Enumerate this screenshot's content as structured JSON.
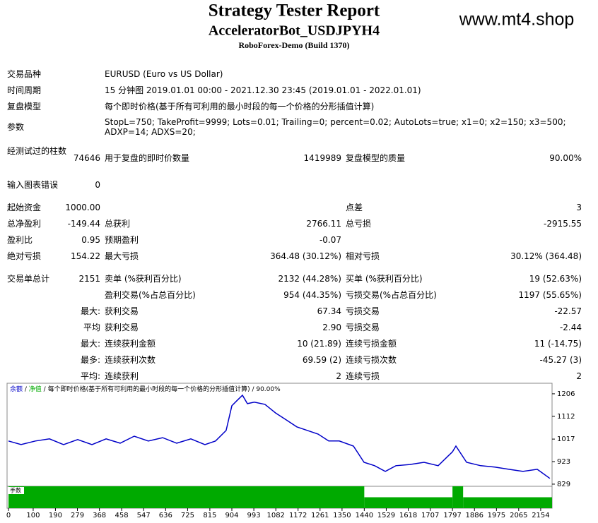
{
  "header": {
    "title": "Strategy Tester Report",
    "subtitle": "AcceleratorBot_USDJPYH4",
    "build": "RoboForex-Demo (Build 1370)",
    "watermark": "www.mt4.shop"
  },
  "info": [
    [
      "交易品种",
      "EURUSD (Euro vs US Dollar)"
    ],
    [
      "时间周期",
      "15 分钟图 2019.01.01 00:00 - 2021.12.30 23:45 (2019.01.01 - 2022.01.01)"
    ],
    [
      "复盘模型",
      "每个即时价格(基于所有可利用的最小时段的每一个价格的分形插值计算)"
    ],
    [
      "参数",
      "StopL=750; TakeProfit=9999; Lots=0.01; Trailing=0; percent=0.02; AutoLots=true; x1=0; x2=150; x3=500; ADXP=14; ADXS=20;"
    ]
  ],
  "stats": [
    [
      "经测试过的柱数",
      "74646",
      "用于复盘的即时价数量",
      "1419989",
      "复盘模型的质量",
      "90.00%"
    ],
    [
      "输入图表错误",
      "0",
      null,
      null,
      null,
      null
    ],
    [
      "起始资金",
      "1000.00",
      null,
      null,
      "点差",
      "3"
    ],
    [
      "总净盈利",
      "-149.44",
      "总获利",
      "2766.11",
      "总亏损",
      "-2915.55"
    ],
    [
      "盈利比",
      "0.95",
      "预期盈利",
      "-0.07",
      null,
      null
    ],
    [
      "绝对亏损",
      "154.22",
      "最大亏损",
      "364.48 (30.12%)",
      "相对亏损",
      "30.12% (364.48)"
    ],
    [
      "交易单总计",
      "2151",
      "卖单 (%获利百分比)",
      "2132 (44.28%)",
      "买单 (%获利百分比)",
      "19 (52.63%)"
    ],
    [
      null,
      null,
      "盈利交易(%占总百分比)",
      "954 (44.35%)",
      "亏损交易(%占总百分比)",
      "1197 (55.65%)"
    ],
    [
      null,
      "最大:",
      "获利交易",
      "67.34",
      "亏损交易",
      "-22.57"
    ],
    [
      null,
      "平均",
      "获利交易",
      "2.90",
      "亏损交易",
      "-2.44"
    ],
    [
      null,
      "最大:",
      "连续获利金额",
      "10 (21.89)",
      "连续亏损金额",
      "11 (-14.75)"
    ],
    [
      null,
      "最多:",
      "连续获利次数",
      "69.59 (2)",
      "连续亏损次数",
      "-45.27 (3)"
    ],
    [
      null,
      "平均:",
      "连续获利",
      "2",
      "连续亏损",
      "2"
    ]
  ],
  "chart": {
    "type": "line",
    "legend": [
      "余额",
      "净值",
      "每个即时价格(基于所有可利用的最小时段的每一个价格的分形插值计算)",
      "90.00%"
    ],
    "legend_separator": " / ",
    "lots_label": "手数",
    "xlim": [
      0,
      2200
    ],
    "ylim": [
      820,
      1250
    ],
    "xticks": [
      0,
      100,
      190,
      279,
      368,
      458,
      547,
      636,
      725,
      815,
      904,
      993,
      1082,
      1172,
      1261,
      1350,
      1440,
      1529,
      1618,
      1707,
      1797,
      1886,
      1975,
      2065,
      2154
    ],
    "yticks": [
      1206,
      1112,
      1017,
      923,
      829
    ],
    "balance": {
      "color": "#0000c8",
      "x": [
        0,
        51,
        109,
        166,
        223,
        280,
        338,
        395,
        452,
        509,
        566,
        624,
        681,
        738,
        795,
        838,
        881,
        904,
        924,
        947,
        967,
        995,
        1038,
        1081,
        1124,
        1167,
        1210,
        1253,
        1296,
        1339,
        1396,
        1439,
        1482,
        1525,
        1568,
        1625,
        1682,
        1739,
        1797,
        1811,
        1854,
        1911,
        1968,
        2025,
        2082,
        2140,
        2191
      ],
      "y": [
        1009,
        994,
        1009,
        1018,
        994,
        1015,
        994,
        1018,
        1000,
        1029,
        1009,
        1023,
        1000,
        1018,
        994,
        1009,
        1053,
        1156,
        1177,
        1200,
        1165,
        1171,
        1162,
        1126,
        1097,
        1068,
        1053,
        1038,
        1009,
        1009,
        988,
        920,
        906,
        882,
        906,
        911,
        920,
        906,
        964,
        988,
        920,
        906,
        900,
        891,
        882,
        891,
        853
      ]
    },
    "lots": {
      "color": "#00aa00",
      "ylim": [
        0,
        0.02
      ],
      "bins": [
        0,
        1440,
        1797,
        1840,
        2200
      ],
      "values": [
        0.02,
        0.01,
        0.02,
        0.01
      ]
    }
  }
}
